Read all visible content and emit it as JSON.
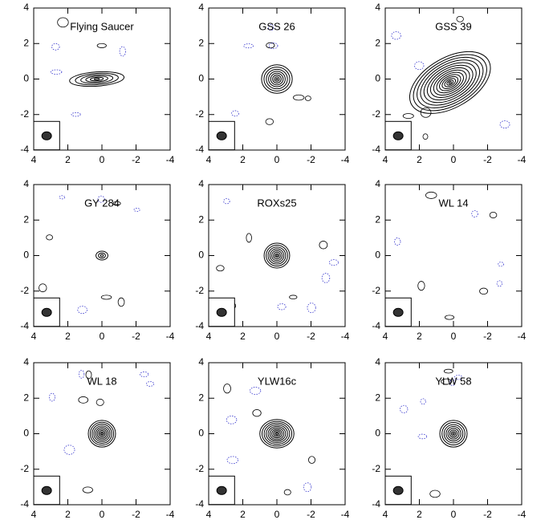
{
  "chart_data": [
    {
      "type": "contour",
      "title": "Flying Saucer",
      "xlim": [
        4,
        -4
      ],
      "ylim": [
        -4,
        4
      ],
      "xticks": [
        4,
        2,
        0,
        -2,
        -4
      ],
      "yticks": [
        -4,
        -2,
        0,
        2,
        4
      ],
      "source": {
        "x": 0.3,
        "y": 0,
        "rx": 1.6,
        "ry": 0.4,
        "angle": -4,
        "levels": 6
      }
    },
    {
      "type": "contour",
      "title": "GSS 26",
      "xlim": [
        4,
        -4
      ],
      "ylim": [
        -4,
        4
      ],
      "xticks": [
        4,
        2,
        0,
        -2,
        -4
      ],
      "yticks": [
        -4,
        -2,
        0,
        2,
        4
      ],
      "source": {
        "x": 0,
        "y": 0,
        "rx": 0.9,
        "ry": 0.8,
        "angle": 0,
        "levels": 8
      }
    },
    {
      "type": "contour",
      "title": "GSS 39",
      "xlim": [
        4,
        -4
      ],
      "ylim": [
        -4,
        4
      ],
      "xticks": [
        4,
        2,
        0,
        -2,
        -4
      ],
      "yticks": [
        -4,
        -2,
        0,
        2,
        4
      ],
      "source": {
        "x": 0.2,
        "y": -0.2,
        "rx": 2.6,
        "ry": 1.4,
        "angle": -30,
        "levels": 14
      }
    },
    {
      "type": "contour",
      "title": "GY 284",
      "xlim": [
        4,
        -4
      ],
      "ylim": [
        -4,
        4
      ],
      "xticks": [
        4,
        2,
        0,
        -2,
        -4
      ],
      "yticks": [
        -4,
        -2,
        0,
        2,
        4
      ],
      "source": {
        "x": 0,
        "y": 0,
        "rx": 0.35,
        "ry": 0.25,
        "angle": 0,
        "levels": 3
      }
    },
    {
      "type": "contour",
      "title": "ROXs25",
      "xlim": [
        4,
        -4
      ],
      "ylim": [
        -4,
        4
      ],
      "xticks": [
        4,
        2,
        0,
        -2,
        -4
      ],
      "yticks": [
        -4,
        -2,
        0,
        2,
        4
      ],
      "source": {
        "x": 0,
        "y": 0,
        "rx": 0.75,
        "ry": 0.7,
        "angle": 0,
        "levels": 8
      }
    },
    {
      "type": "contour",
      "title": "WL 14",
      "xlim": [
        4,
        -4
      ],
      "ylim": [
        -4,
        4
      ],
      "xticks": [
        4,
        2,
        0,
        -2,
        -4
      ],
      "yticks": [
        -4,
        -2,
        0,
        2,
        4
      ],
      "source": {
        "x": 0,
        "y": 0,
        "rx": 0,
        "ry": 0,
        "angle": 0,
        "levels": 0
      }
    },
    {
      "type": "contour",
      "title": "WL 18",
      "xlim": [
        4,
        -4
      ],
      "ylim": [
        -4,
        4
      ],
      "xticks": [
        4,
        2,
        0,
        -2,
        -4
      ],
      "yticks": [
        -4,
        -2,
        0,
        2,
        4
      ],
      "source": {
        "x": 0,
        "y": 0,
        "rx": 0.8,
        "ry": 0.75,
        "angle": 0,
        "levels": 9
      }
    },
    {
      "type": "contour",
      "title": "YLW16c",
      "xlim": [
        4,
        -4
      ],
      "ylim": [
        -4,
        4
      ],
      "xticks": [
        4,
        2,
        0,
        -2,
        -4
      ],
      "yticks": [
        -4,
        -2,
        0,
        2,
        4
      ],
      "source": {
        "x": 0,
        "y": 0,
        "rx": 1.0,
        "ry": 0.8,
        "angle": 0,
        "levels": 10
      }
    },
    {
      "type": "contour",
      "title": "YLW 58",
      "xlim": [
        4,
        -4
      ],
      "ylim": [
        -4,
        4
      ],
      "xticks": [
        4,
        2,
        0,
        -2,
        -4
      ],
      "yticks": [
        -4,
        -2,
        0,
        2,
        4
      ],
      "source": {
        "x": 0,
        "y": 0,
        "rx": 0.8,
        "ry": 0.75,
        "angle": 0,
        "levels": 8
      }
    }
  ]
}
